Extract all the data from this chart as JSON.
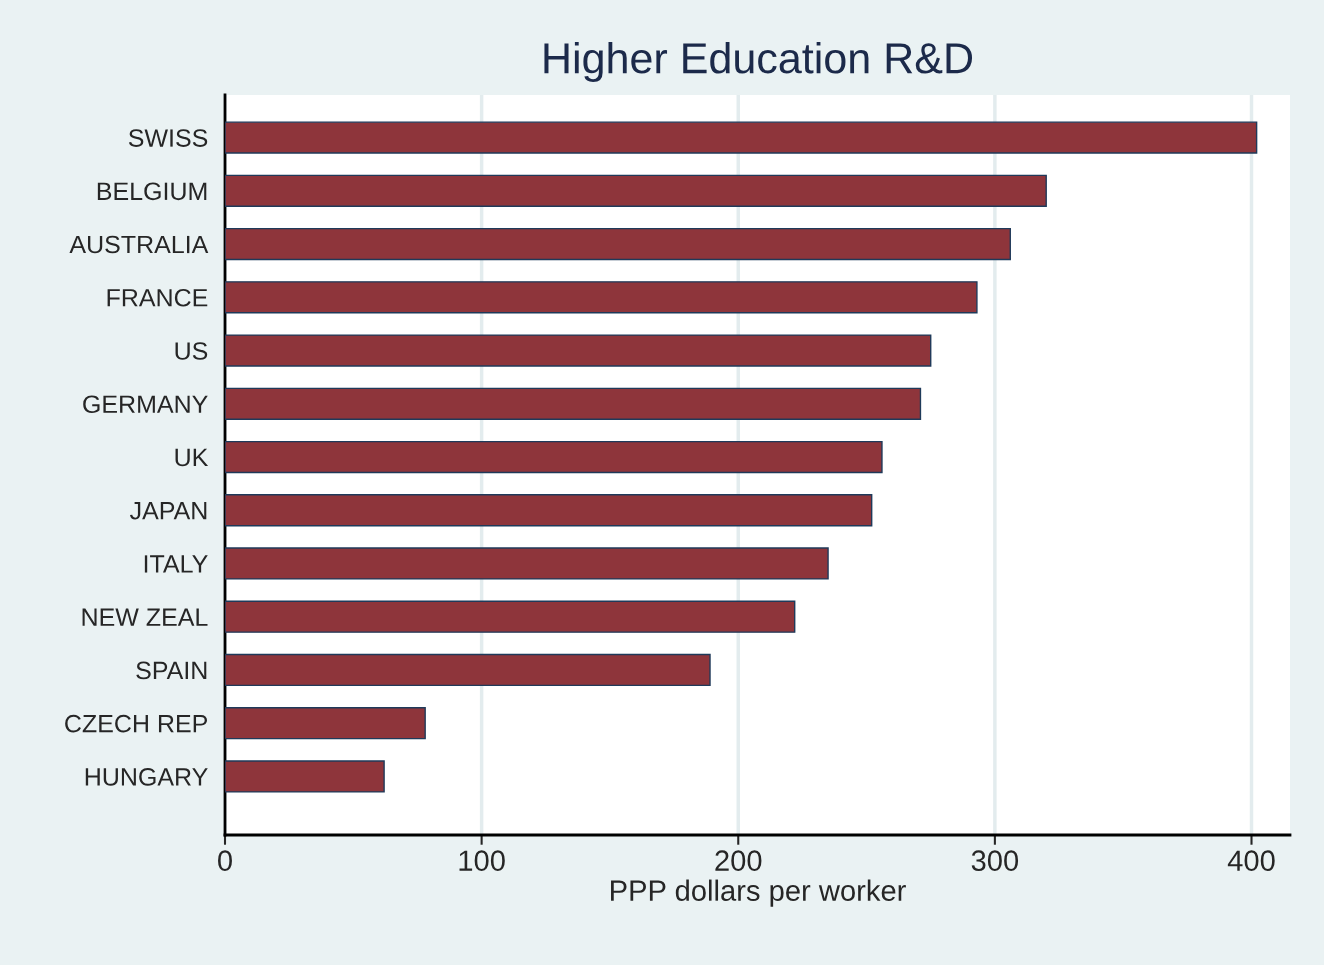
{
  "chart_data": {
    "type": "bar",
    "orientation": "horizontal",
    "title": "Higher Education R&D",
    "xlabel": "PPP dollars per worker",
    "categories": [
      "SWISS",
      "BELGIUM",
      "AUSTRALIA",
      "FRANCE",
      "US",
      "GERMANY",
      "UK",
      "JAPAN",
      "ITALY",
      "NEW ZEAL",
      "SPAIN",
      "CZECH REP",
      "HUNGARY"
    ],
    "values": [
      402,
      320,
      306,
      293,
      275,
      271,
      256,
      252,
      235,
      222,
      189,
      78,
      62
    ],
    "color": "#8e353b",
    "xlim": [
      0,
      415
    ],
    "xticks": [
      0,
      100,
      200,
      300,
      400
    ],
    "grid": "x"
  }
}
